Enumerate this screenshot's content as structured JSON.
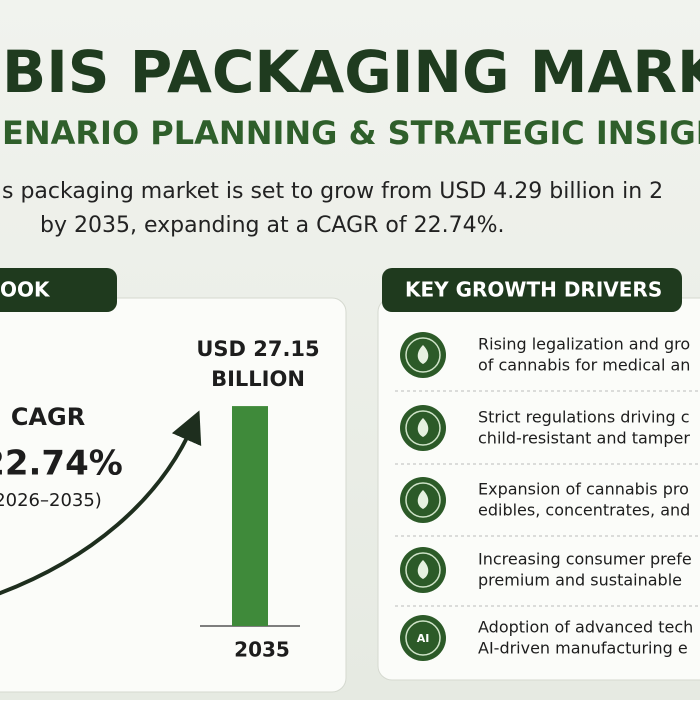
{
  "header": {
    "title": "BIS PACKAGING MARKET",
    "subtitle": "ENARIO PLANNING & STRATEGIC INSIGHTS",
    "intro": [
      "s packaging market is set to grow from USD 4.29 billion in 2",
      "by 2035, expanding at a CAGR of 22.74%."
    ]
  },
  "outlook": {
    "tab": "OOK",
    "cagr_label": "CAGR",
    "cagr_value": "22.74%",
    "period": "2026–2035)",
    "bar": {
      "value": 27.15,
      "label_lines": [
        "USD 27.15",
        "BILLION"
      ],
      "year": "2035",
      "color": "#3f8a3a"
    }
  },
  "drivers": {
    "tab": "KEY GROWTH DRIVERS",
    "icon_ai": "AI",
    "items": [
      [
        "Rising legalization and gro",
        "of cannabis for medical an"
      ],
      [
        "Strict regulations driving c",
        "child-resistant and tamper"
      ],
      [
        "Expansion of cannabis pro",
        "edibles, concentrates, and"
      ],
      [
        "Increasing consumer prefe",
        "premium and sustainable"
      ],
      [
        "Adoption of advanced tech",
        "AI-driven manufacturing e"
      ]
    ]
  }
}
